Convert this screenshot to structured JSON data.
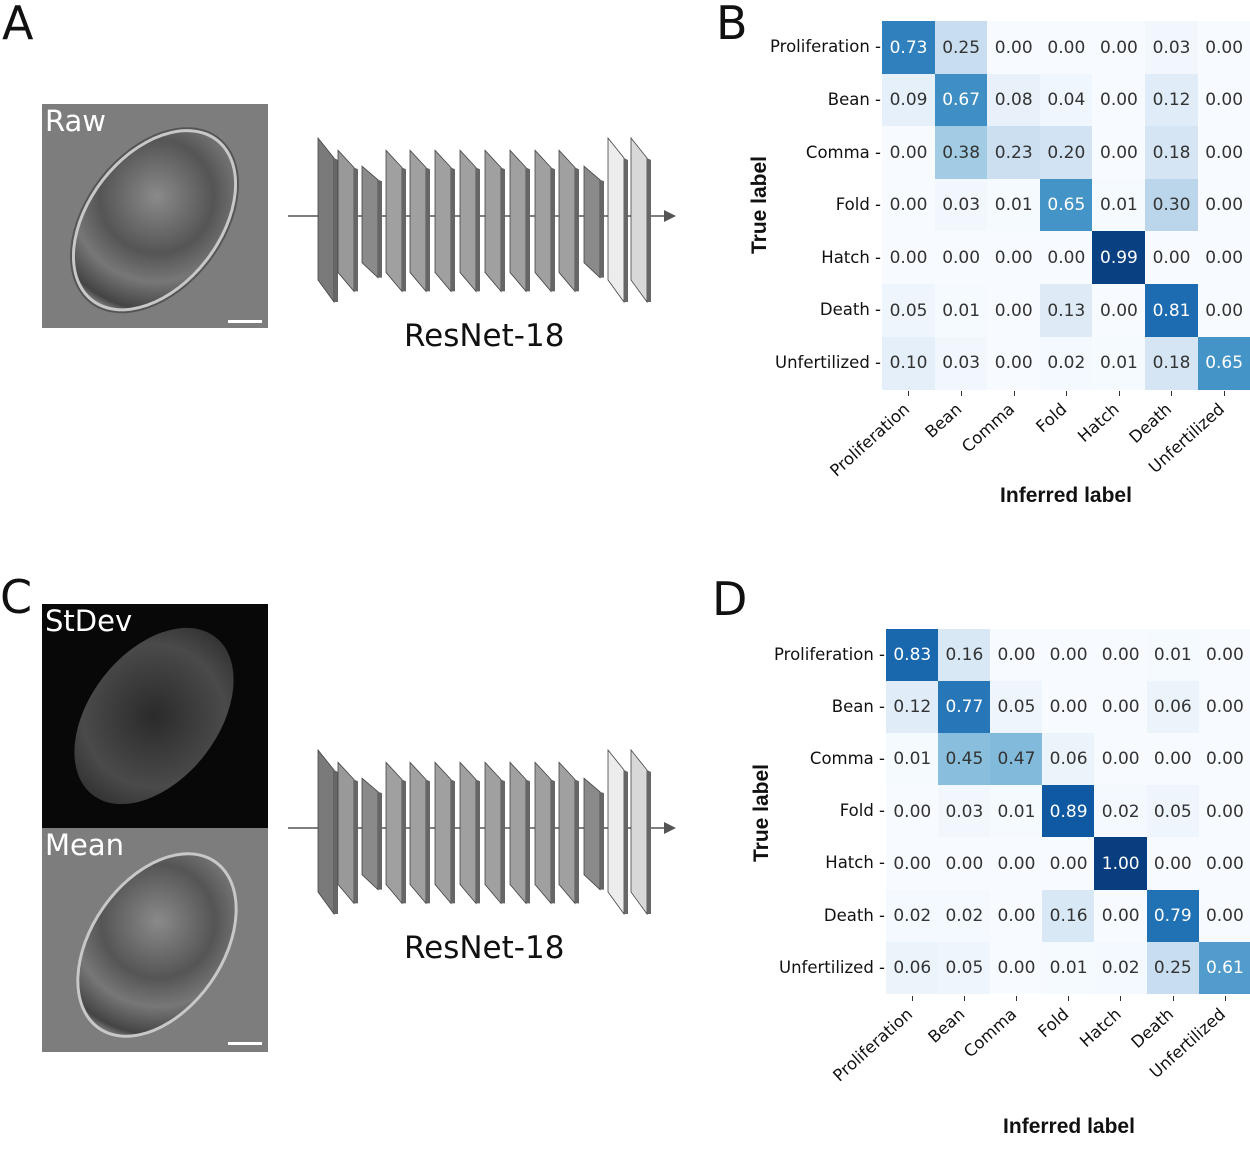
{
  "panels": {
    "a": {
      "letter": "A",
      "image_label": "Raw",
      "network": "ResNet-18"
    },
    "b": {
      "letter": "B"
    },
    "c": {
      "letter": "C",
      "image_label_top": "StDev",
      "image_label_bottom": "Mean",
      "network": "ResNet-18"
    },
    "d": {
      "letter": "D"
    }
  },
  "chart_data": [
    {
      "type": "heatmap",
      "panel": "B",
      "colormap": "Blues",
      "xlabel": "Inferred label",
      "ylabel": "True label",
      "categories": [
        "Proliferation",
        "Bean",
        "Comma",
        "Fold",
        "Hatch",
        "Death",
        "Unfertilized"
      ],
      "values": [
        [
          0.73,
          0.25,
          0.0,
          0.0,
          0.0,
          0.03,
          0.0
        ],
        [
          0.09,
          0.67,
          0.08,
          0.04,
          0.0,
          0.12,
          0.0
        ],
        [
          0.0,
          0.38,
          0.23,
          0.2,
          0.0,
          0.18,
          0.0
        ],
        [
          0.0,
          0.03,
          0.01,
          0.65,
          0.01,
          0.3,
          0.0
        ],
        [
          0.0,
          0.0,
          0.0,
          0.0,
          0.99,
          0.0,
          0.0
        ],
        [
          0.05,
          0.01,
          0.0,
          0.13,
          0.0,
          0.81,
          0.0
        ],
        [
          0.1,
          0.03,
          0.0,
          0.02,
          0.01,
          0.18,
          0.65
        ]
      ]
    },
    {
      "type": "heatmap",
      "panel": "D",
      "colormap": "Blues",
      "xlabel": "Inferred label",
      "ylabel": "True label",
      "categories": [
        "Proliferation",
        "Bean",
        "Comma",
        "Fold",
        "Hatch",
        "Death",
        "Unfertilized"
      ],
      "values": [
        [
          0.83,
          0.16,
          0.0,
          0.0,
          0.0,
          0.01,
          0.0
        ],
        [
          0.12,
          0.77,
          0.05,
          0.0,
          0.0,
          0.06,
          0.0
        ],
        [
          0.01,
          0.45,
          0.47,
          0.06,
          0.0,
          0.0,
          0.0
        ],
        [
          0.0,
          0.03,
          0.01,
          0.89,
          0.02,
          0.05,
          0.0
        ],
        [
          0.0,
          0.0,
          0.0,
          0.0,
          1.0,
          0.0,
          0.0
        ],
        [
          0.02,
          0.02,
          0.0,
          0.16,
          0.0,
          0.79,
          0.0
        ],
        [
          0.06,
          0.05,
          0.0,
          0.01,
          0.02,
          0.25,
          0.61
        ]
      ]
    }
  ]
}
